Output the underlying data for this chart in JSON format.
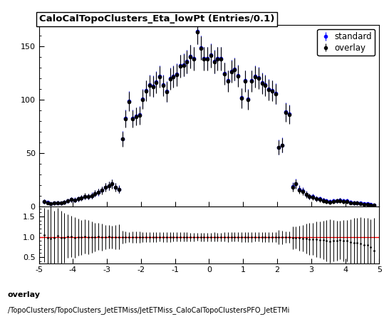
{
  "title": "CaloCalTopoClusters_Eta_lowPt (Entries/0.1)",
  "xlim": [
    -5,
    5
  ],
  "ylim_main": [
    0,
    170
  ],
  "ylim_ratio": [
    0.35,
    1.75
  ],
  "ratio_yticks": [
    0.5,
    1.0,
    1.5
  ],
  "footer_line1": "overlay",
  "footer_line2": "/TopoClusters/TopoClusters_JetETMiss/JetETMiss_CaloCalTopoClustersPFO_JetETMi",
  "overlay_color": "#000000",
  "standard_color": "#0000ff",
  "ratio_line_color": "#ff0000",
  "background_color": "#ffffff",
  "overlay_x": [
    -4.85,
    -4.75,
    -4.65,
    -4.55,
    -4.45,
    -4.35,
    -4.25,
    -4.15,
    -4.05,
    -3.95,
    -3.85,
    -3.75,
    -3.65,
    -3.55,
    -3.45,
    -3.35,
    -3.25,
    -3.15,
    -3.05,
    -2.95,
    -2.85,
    -2.75,
    -2.65,
    -2.55,
    -2.45,
    -2.35,
    -2.25,
    -2.15,
    -2.05,
    -1.95,
    -1.85,
    -1.75,
    -1.65,
    -1.55,
    -1.45,
    -1.35,
    -1.25,
    -1.15,
    -1.05,
    -0.95,
    -0.85,
    -0.75,
    -0.65,
    -0.55,
    -0.45,
    -0.35,
    -0.25,
    -0.15,
    -0.05,
    0.05,
    0.15,
    0.25,
    0.35,
    0.45,
    0.55,
    0.65,
    0.75,
    0.85,
    0.95,
    1.05,
    1.15,
    1.25,
    1.35,
    1.45,
    1.55,
    1.65,
    1.75,
    1.85,
    1.95,
    2.05,
    2.15,
    2.25,
    2.35,
    2.45,
    2.55,
    2.65,
    2.75,
    2.85,
    2.95,
    3.05,
    3.15,
    3.25,
    3.35,
    3.45,
    3.55,
    3.65,
    3.75,
    3.85,
    3.95,
    4.05,
    4.15,
    4.25,
    4.35,
    4.45,
    4.55,
    4.65,
    4.75,
    4.85
  ],
  "overlay_y": [
    4.5,
    3.5,
    2.5,
    3.0,
    3.5,
    3.0,
    4.0,
    5.5,
    6.5,
    6.0,
    7.0,
    8.0,
    9.5,
    9.0,
    10.0,
    12.0,
    13.5,
    15.0,
    18.0,
    19.5,
    21.0,
    18.0,
    16.0,
    63.0,
    82.0,
    98.0,
    82.0,
    84.0,
    85.0,
    100.0,
    108.0,
    113.0,
    112.0,
    116.0,
    121.0,
    113.0,
    107.0,
    119.0,
    121.0,
    123.0,
    131.0,
    132.0,
    135.0,
    140.0,
    138.0,
    163.0,
    148.0,
    138.0,
    138.0,
    141.0,
    135.0,
    138.0,
    138.0,
    124.0,
    117.0,
    126.0,
    128.0,
    122.0,
    101.0,
    117.0,
    100.0,
    117.0,
    121.0,
    120.0,
    115.0,
    113.0,
    109.0,
    108.0,
    105.0,
    55.0,
    57.0,
    88.0,
    86.0,
    18.0,
    21.0,
    15.5,
    14.0,
    11.0,
    9.0,
    8.5,
    7.0,
    6.5,
    5.5,
    4.5,
    4.0,
    4.5,
    5.0,
    5.5,
    4.5,
    4.5,
    3.5,
    3.0,
    3.0,
    2.5,
    2.0,
    2.0,
    1.5,
    1.0
  ],
  "overlay_yerr": [
    2.0,
    1.8,
    1.5,
    1.5,
    1.6,
    1.5,
    1.8,
    2.0,
    2.3,
    2.2,
    2.3,
    2.5,
    2.8,
    2.7,
    2.8,
    3.0,
    3.2,
    3.5,
    3.8,
    4.0,
    4.2,
    3.8,
    3.5,
    7.0,
    8.0,
    9.0,
    8.0,
    8.2,
    8.2,
    9.0,
    9.5,
    9.8,
    9.7,
    9.9,
    10.0,
    9.7,
    9.5,
    10.0,
    10.0,
    10.2,
    10.5,
    10.5,
    10.7,
    10.9,
    10.8,
    11.5,
    11.0,
    10.8,
    10.8,
    11.0,
    10.7,
    10.8,
    10.8,
    10.2,
    9.9,
    10.3,
    10.4,
    10.1,
    9.2,
    9.9,
    9.2,
    9.9,
    10.0,
    10.0,
    9.8,
    9.7,
    9.6,
    9.5,
    9.4,
    6.7,
    6.8,
    8.6,
    8.5,
    3.8,
    4.2,
    3.6,
    3.4,
    3.0,
    2.7,
    2.6,
    2.4,
    2.3,
    2.1,
    1.9,
    1.8,
    1.9,
    2.0,
    2.1,
    1.9,
    1.9,
    1.7,
    1.6,
    1.6,
    1.5,
    1.3,
    1.3,
    1.1,
    1.0
  ],
  "standard_y": [
    4.3,
    3.6,
    2.6,
    3.1,
    3.4,
    3.1,
    4.1,
    5.4,
    6.4,
    6.1,
    7.1,
    8.1,
    9.4,
    9.1,
    10.1,
    12.1,
    13.4,
    15.1,
    18.1,
    19.4,
    21.1,
    18.1,
    16.1,
    63.5,
    82.5,
    98.5,
    82.5,
    84.5,
    85.5,
    100.5,
    108.5,
    113.5,
    112.5,
    116.5,
    121.5,
    113.5,
    107.5,
    119.5,
    121.5,
    123.5,
    131.5,
    132.5,
    135.5,
    140.5,
    138.5,
    163.5,
    148.5,
    138.5,
    138.5,
    141.5,
    135.5,
    138.5,
    138.5,
    124.5,
    117.5,
    126.5,
    128.5,
    122.5,
    101.5,
    117.5,
    100.5,
    117.5,
    121.5,
    120.5,
    115.5,
    113.5,
    109.5,
    108.5,
    105.5,
    55.5,
    57.5,
    88.5,
    86.5,
    18.5,
    21.5,
    16.0,
    14.5,
    11.5,
    9.5,
    9.0,
    7.5,
    7.0,
    6.0,
    5.0,
    4.5,
    5.0,
    5.5,
    6.0,
    5.0,
    5.0,
    4.0,
    3.5,
    3.5,
    3.0,
    2.5,
    2.5,
    2.0,
    1.5
  ],
  "standard_yerr": [
    2.0,
    1.8,
    1.5,
    1.5,
    1.6,
    1.5,
    1.8,
    2.0,
    2.3,
    2.2,
    2.3,
    2.5,
    2.8,
    2.7,
    2.8,
    3.0,
    3.2,
    3.5,
    3.8,
    4.0,
    4.2,
    3.8,
    3.5,
    7.0,
    8.0,
    9.0,
    8.0,
    8.2,
    8.2,
    9.0,
    9.5,
    9.8,
    9.7,
    9.9,
    10.0,
    9.7,
    9.5,
    10.0,
    10.0,
    10.2,
    10.5,
    10.5,
    10.7,
    10.9,
    10.8,
    11.5,
    11.0,
    10.8,
    10.8,
    11.0,
    10.7,
    10.8,
    10.8,
    10.2,
    9.9,
    10.3,
    10.4,
    10.1,
    9.2,
    9.9,
    9.2,
    9.9,
    10.0,
    10.0,
    9.8,
    9.7,
    9.6,
    9.5,
    9.4,
    6.7,
    6.8,
    8.6,
    8.5,
    3.8,
    4.2,
    3.6,
    3.4,
    3.0,
    2.7,
    2.6,
    2.4,
    2.3,
    2.1,
    1.9,
    1.8,
    1.9,
    2.0,
    2.1,
    1.9,
    1.9,
    1.7,
    1.6,
    1.6,
    1.5,
    1.3,
    1.3,
    1.1,
    1.0
  ]
}
